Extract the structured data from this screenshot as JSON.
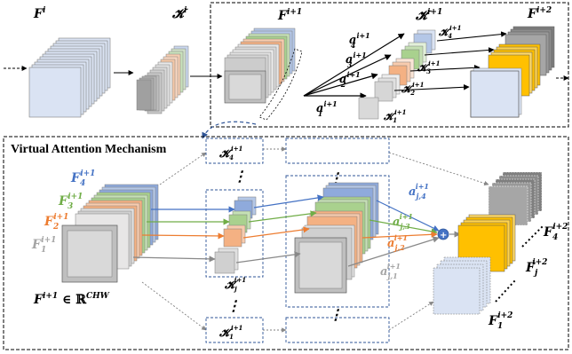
{
  "labels": {
    "F_i": "F",
    "F_i_sup": "i",
    "K_i": "𝓚",
    "K_i_sup": "i",
    "F_i1": "F",
    "F_i1_sup": "i+1",
    "K_i1": "𝓚",
    "K_i1_sup": "i+1",
    "F_i2": "F",
    "F_i2_sup": "i+2",
    "a_base": "a",
    "a4_sup": "i+1",
    "a4_sub": "4",
    "a3_sup": "i+1",
    "a3_sub": "3",
    "a2_sup": "i+1",
    "a2_sub": "2",
    "a1_sup": "i+1",
    "a1_sub": "1",
    "K4_top": "𝓚",
    "K4_top_sub": "4",
    "K4_top_sup": "i+1",
    "K3_top": "𝓚",
    "K3_top_sub": "3",
    "K3_top_sup": "i+1",
    "K2_top": "𝓚",
    "K2_top_sub": "2",
    "K2_top_sup": "i+1",
    "K1_top": "𝓚",
    "K1_top_sub": "1",
    "K1_top_sup": "i+1"
  },
  "bottom": {
    "title": "Virtual Attention Mechanism",
    "F4": "F",
    "F4_sub": "4",
    "F4_sup": "i+1",
    "F3": "F",
    "F3_sub": "3",
    "F3_sup": "i+1",
    "F2": "F",
    "F2_sub": "2",
    "F2_sup": "i+1",
    "F1": "F",
    "F1_sub": "1",
    "F1_sup": "i+1",
    "domain_F": "F",
    "domain_sup": "i+1",
    "domain_in": " ∈ ℝ",
    "domain_chw": "CHW",
    "K4": "𝓚",
    "K4_sub": "4",
    "K4_sup": "i+1",
    "Kj": "𝓚",
    "Kj_sub": "j",
    "Kj_sup": "i+1",
    "K1": "𝓚",
    "K1_sub": "1",
    "K1_sup": "i+1",
    "aj4": "a",
    "aj4_sub": "j,4",
    "aj4_sup": "i+1",
    "aj3": "a",
    "aj3_sub": "j,3",
    "aj3_sup": "i+1",
    "aj2": "a",
    "aj2_sub": "j,2",
    "aj2_sup": "i+1",
    "aj1": "a",
    "aj1_sub": "j,1",
    "aj1_sup": "i+1",
    "Fo4": "F",
    "Fo4_sub": "4",
    "Fo4_sup": "i+2",
    "Foj": "F",
    "Foj_sub": "j",
    "Foj_sup": "i+2",
    "Fo1": "F",
    "Fo1_sub": "1",
    "Fo1_sup": "i+2"
  },
  "colors": {
    "blue": "#4472c4",
    "green": "#70ad47",
    "orange": "#ed7d31",
    "gray": "#a5a5a5",
    "yellow": "#ffc000",
    "dark": "#595959"
  }
}
